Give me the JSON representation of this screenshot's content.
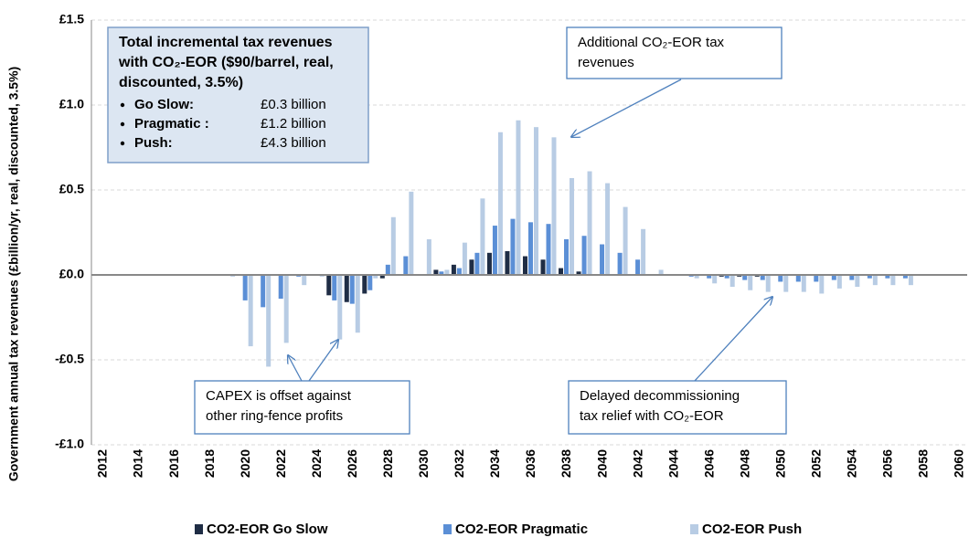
{
  "chart_data": {
    "type": "bar",
    "y_label": "Government annual tax revenues (£billion/yr, real, discounted, 3.5%)",
    "categories": [
      "2012",
      null,
      "2014",
      null,
      "2016",
      null,
      "2018",
      null,
      "2020",
      null,
      "2022",
      null,
      "2024",
      null,
      "2026",
      null,
      "2028",
      null,
      "2030",
      null,
      "2032",
      null,
      "2034",
      null,
      "2036",
      null,
      "2038",
      null,
      "2040",
      null,
      "2042",
      null,
      "2044",
      null,
      "2046",
      null,
      "2048",
      null,
      "2050",
      null,
      "2052",
      null,
      "2054",
      null,
      "2056",
      null,
      "2058",
      null,
      "2060"
    ],
    "series": [
      {
        "name": "CO2-EOR Go Slow",
        "color": "#1f2d45",
        "values": [
          0,
          0,
          0,
          0,
          0,
          0,
          0,
          0,
          0,
          0,
          0,
          0,
          0,
          -0.12,
          -0.16,
          -0.11,
          -0.02,
          0,
          0,
          0.03,
          0.06,
          0.09,
          0.13,
          0.14,
          0.11,
          0.09,
          0.04,
          0.02,
          0,
          0,
          0,
          0,
          0,
          0,
          0,
          -0.01,
          -0.01,
          -0.01,
          0,
          0,
          0,
          0,
          0,
          0,
          0,
          0,
          0,
          0,
          0
        ]
      },
      {
        "name": "CO2-EOR Pragmatic",
        "color": "#5b8fd6",
        "values": [
          0,
          0,
          0,
          0,
          0,
          0,
          0,
          0,
          -0.15,
          -0.19,
          -0.14,
          -0.01,
          0,
          -0.15,
          -0.17,
          -0.09,
          0.06,
          0.11,
          0,
          0.02,
          0.04,
          0.13,
          0.29,
          0.33,
          0.31,
          0.3,
          0.21,
          0.23,
          0.18,
          0.13,
          0.09,
          0,
          0,
          -0.01,
          -0.02,
          -0.02,
          -0.03,
          -0.03,
          -0.04,
          -0.04,
          -0.04,
          -0.03,
          -0.03,
          -0.02,
          -0.02,
          -0.02,
          0,
          0,
          0
        ]
      },
      {
        "name": "CO2-EOR Push",
        "color": "#b8cce4",
        "values": [
          0,
          0,
          0,
          0,
          0,
          0,
          0,
          -0.01,
          -0.42,
          -0.54,
          -0.4,
          -0.06,
          -0.01,
          -0.38,
          -0.34,
          -0.02,
          0.34,
          0.49,
          0.21,
          0.03,
          0.19,
          0.45,
          0.84,
          0.91,
          0.87,
          0.81,
          0.57,
          0.61,
          0.54,
          0.4,
          0.27,
          0.03,
          0,
          -0.02,
          -0.05,
          -0.07,
          -0.09,
          -0.1,
          -0.1,
          -0.1,
          -0.11,
          -0.08,
          -0.07,
          -0.06,
          -0.06,
          -0.06,
          0,
          0,
          0
        ]
      }
    ],
    "ylim": [
      -1.0,
      1.5
    ],
    "yticks": [
      {
        "value": -1.0,
        "label": "-£1.0"
      },
      {
        "value": -0.5,
        "label": "-£0.5"
      },
      {
        "value": 0,
        "label": "£0.0"
      },
      {
        "value": 0.5,
        "label": "£0.5"
      },
      {
        "value": 1.0,
        "label": "£1.0"
      },
      {
        "value": 1.5,
        "label": "£1.5"
      }
    ],
    "grid": true,
    "legend": "bottom",
    "info_box": {
      "title_lines": [
        "Total incremental tax revenues",
        "with CO₂-EOR ($90/barrel, real,",
        "discounted, 3.5%)"
      ],
      "items": [
        {
          "label": "Go Slow:",
          "value": "£0.3 billion"
        },
        {
          "label": "Pragmatic :",
          "value": "£1.2 billion"
        },
        {
          "label": "Push:",
          "value": "£4.3 billion"
        }
      ]
    },
    "annotations": [
      {
        "lines": [
          "Additional CO₂-EOR  tax",
          "revenues"
        ]
      },
      {
        "lines": [
          "CAPEX is offset against",
          "other ring-fence profits"
        ]
      },
      {
        "lines": [
          "Delayed decommissioning",
          "tax relief with CO₂-EOR"
        ]
      }
    ]
  }
}
